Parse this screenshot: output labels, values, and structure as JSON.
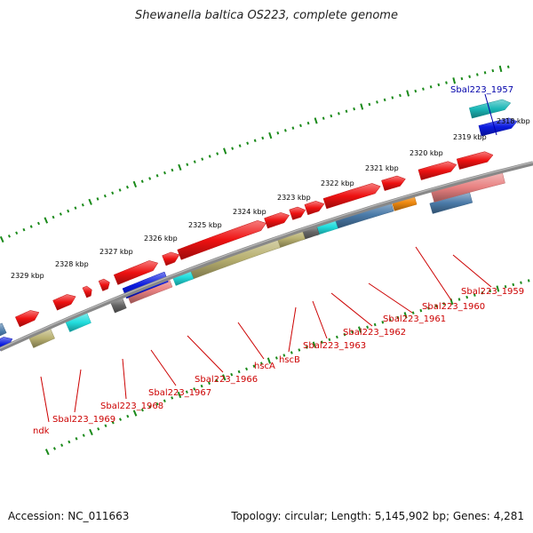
{
  "title": "Shewanella baltica OS223, complete genome",
  "footer": {
    "accession": "Accession: NC_011663",
    "stats": "Topology: circular; Length: 5,145,902 bp; Genes: 4,281"
  },
  "colors": {
    "red": "#ee1111",
    "steelblue": "#4a7aa8",
    "pink": "#e88080",
    "olive": "#b8b070",
    "cyan": "#22dddd",
    "teal": "#1ab7b7",
    "darkgray": "#666666",
    "orange": "#f08a10",
    "blue": "#0a1adf",
    "backbone": "#888888",
    "tick": "#1a8a1a",
    "label_red": "#cc0000",
    "label_blue": "#0000aa"
  },
  "scale_labels": [
    "2318 kbp",
    "2319 kbp",
    "2320 kbp",
    "2321 kbp",
    "2322 kbp",
    "2323 kbp",
    "2324 kbp",
    "2325 kbp",
    "2326 kbp",
    "2327 kbp",
    "2328 kbp",
    "2329 kbp"
  ],
  "gene_labels": [
    "Sbal223_1957",
    "Sbal223_1959",
    "Sbal223_1960",
    "Sbal223_1961",
    "Sbal223_1962",
    "Sbal223_1963",
    "hscB",
    "hscA",
    "Sbal223_1966",
    "Sbal223_1967",
    "Sbal223_1968",
    "Sbal223_1969",
    "ndk"
  ]
}
